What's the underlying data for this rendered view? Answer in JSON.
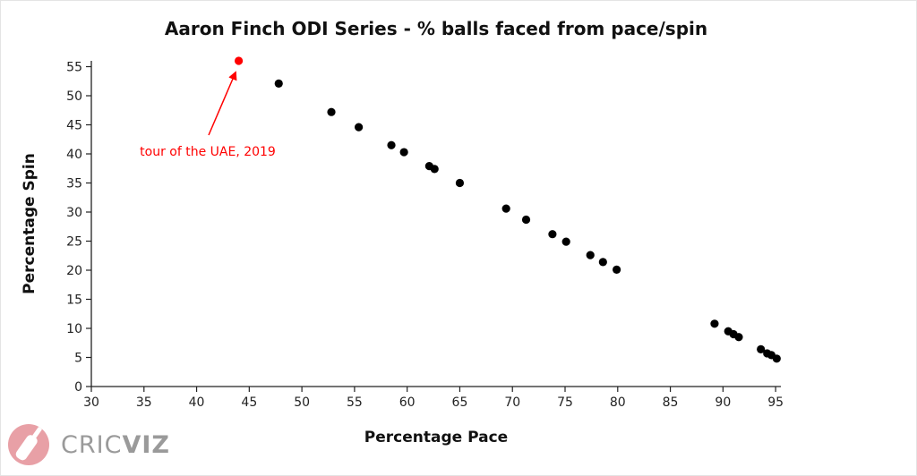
{
  "chart_data": {
    "type": "scatter",
    "title": "Aaron Finch ODI Series - % balls faced from pace/spin",
    "xlabel": "Percentage Pace",
    "ylabel": "Percentage Spin",
    "xlim": [
      30,
      95.5
    ],
    "ylim": [
      0,
      56
    ],
    "xticks": [
      30,
      35,
      40,
      45,
      50,
      55,
      60,
      65,
      70,
      75,
      80,
      85,
      90,
      95
    ],
    "yticks": [
      0,
      5,
      10,
      15,
      20,
      25,
      30,
      35,
      40,
      45,
      50,
      55
    ],
    "point_color": "#000000",
    "highlight_color": "#ff0000",
    "points": [
      {
        "x": 44.0,
        "y": 56.0,
        "highlight": true
      },
      {
        "x": 47.8,
        "y": 52.1
      },
      {
        "x": 52.8,
        "y": 47.2
      },
      {
        "x": 55.4,
        "y": 44.6
      },
      {
        "x": 58.5,
        "y": 41.5
      },
      {
        "x": 59.7,
        "y": 40.3
      },
      {
        "x": 62.1,
        "y": 37.9
      },
      {
        "x": 62.6,
        "y": 37.4
      },
      {
        "x": 65.0,
        "y": 35.0
      },
      {
        "x": 69.4,
        "y": 30.6
      },
      {
        "x": 71.3,
        "y": 28.7
      },
      {
        "x": 73.8,
        "y": 26.2
      },
      {
        "x": 75.1,
        "y": 24.9
      },
      {
        "x": 77.4,
        "y": 22.6
      },
      {
        "x": 78.6,
        "y": 21.4
      },
      {
        "x": 79.9,
        "y": 20.1
      },
      {
        "x": 89.2,
        "y": 10.8
      },
      {
        "x": 90.5,
        "y": 9.5
      },
      {
        "x": 91.0,
        "y": 9.0
      },
      {
        "x": 91.5,
        "y": 8.5
      },
      {
        "x": 93.6,
        "y": 6.4
      },
      {
        "x": 94.2,
        "y": 5.7
      },
      {
        "x": 94.6,
        "y": 5.4
      },
      {
        "x": 95.1,
        "y": 4.8
      }
    ],
    "annotations": [
      {
        "text": "tour of the UAE, 2019",
        "target_x": 44.0,
        "target_y": 56.0
      }
    ],
    "grid": false,
    "legend": "none"
  },
  "branding": {
    "logo_text": "CRICVIZ",
    "logo_color": "#e8a0a6"
  }
}
